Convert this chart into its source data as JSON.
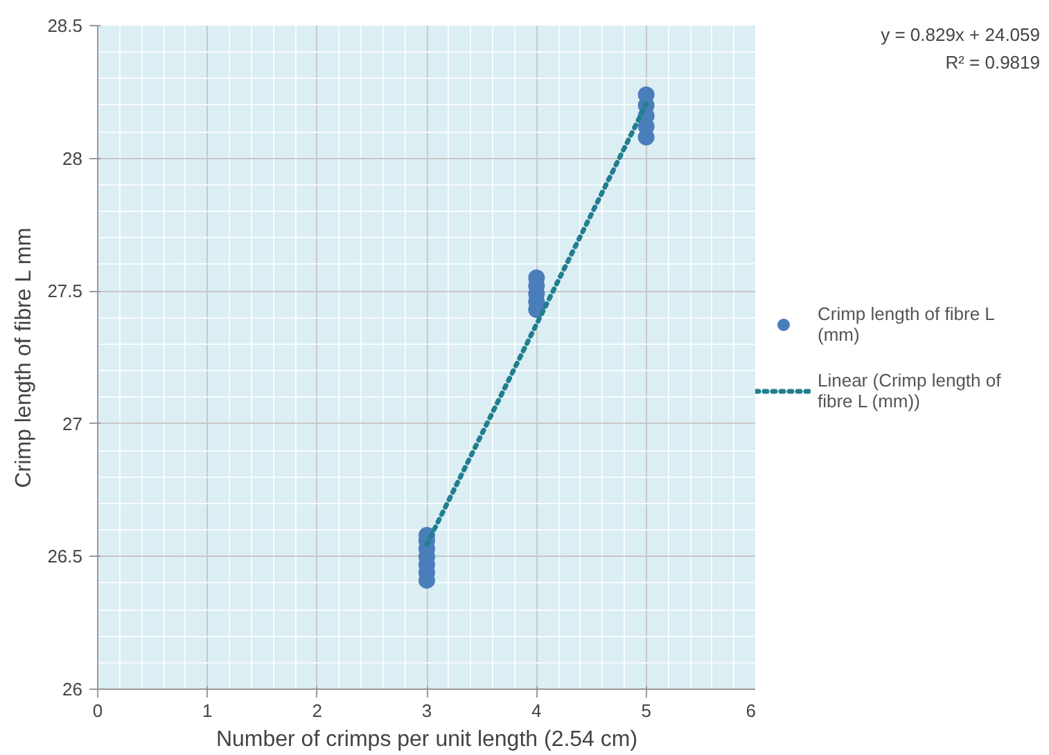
{
  "chart_data": {
    "type": "scatter",
    "xlabel": "Number of crimps per unit length (2.54 cm)",
    "ylabel": "Crimp length of fibre L mm",
    "xlim": [
      0,
      6
    ],
    "xticks": [
      0,
      1,
      2,
      3,
      4,
      5,
      6
    ],
    "ylim": [
      26,
      28.5
    ],
    "yticks": [
      26,
      26.5,
      27,
      27.5,
      28,
      28.5
    ],
    "grid": true,
    "legend": "right",
    "marker": "circle",
    "series": [
      {
        "name": "Crimp length of fibre L (mm)",
        "color": "#4a7ebb",
        "x": [
          3,
          3,
          3,
          3,
          3,
          3,
          3,
          4,
          4,
          4,
          4,
          4,
          5,
          5,
          5,
          5,
          5
        ],
        "values": [
          26.41,
          26.44,
          26.47,
          26.5,
          26.53,
          26.56,
          26.58,
          27.43,
          27.46,
          27.49,
          27.52,
          27.55,
          28.08,
          28.12,
          28.16,
          28.2,
          28.24
        ]
      },
      {
        "name": "Linear (Crimp length of fibre L (mm))",
        "type": "line",
        "marker": "none",
        "line_style": "dotted",
        "color": "#217e8e",
        "x": [
          3,
          5
        ],
        "values": [
          26.546,
          28.204
        ]
      }
    ],
    "annotations": [
      "y = 0.829x + 24.059",
      "R² = 0.9819"
    ]
  }
}
